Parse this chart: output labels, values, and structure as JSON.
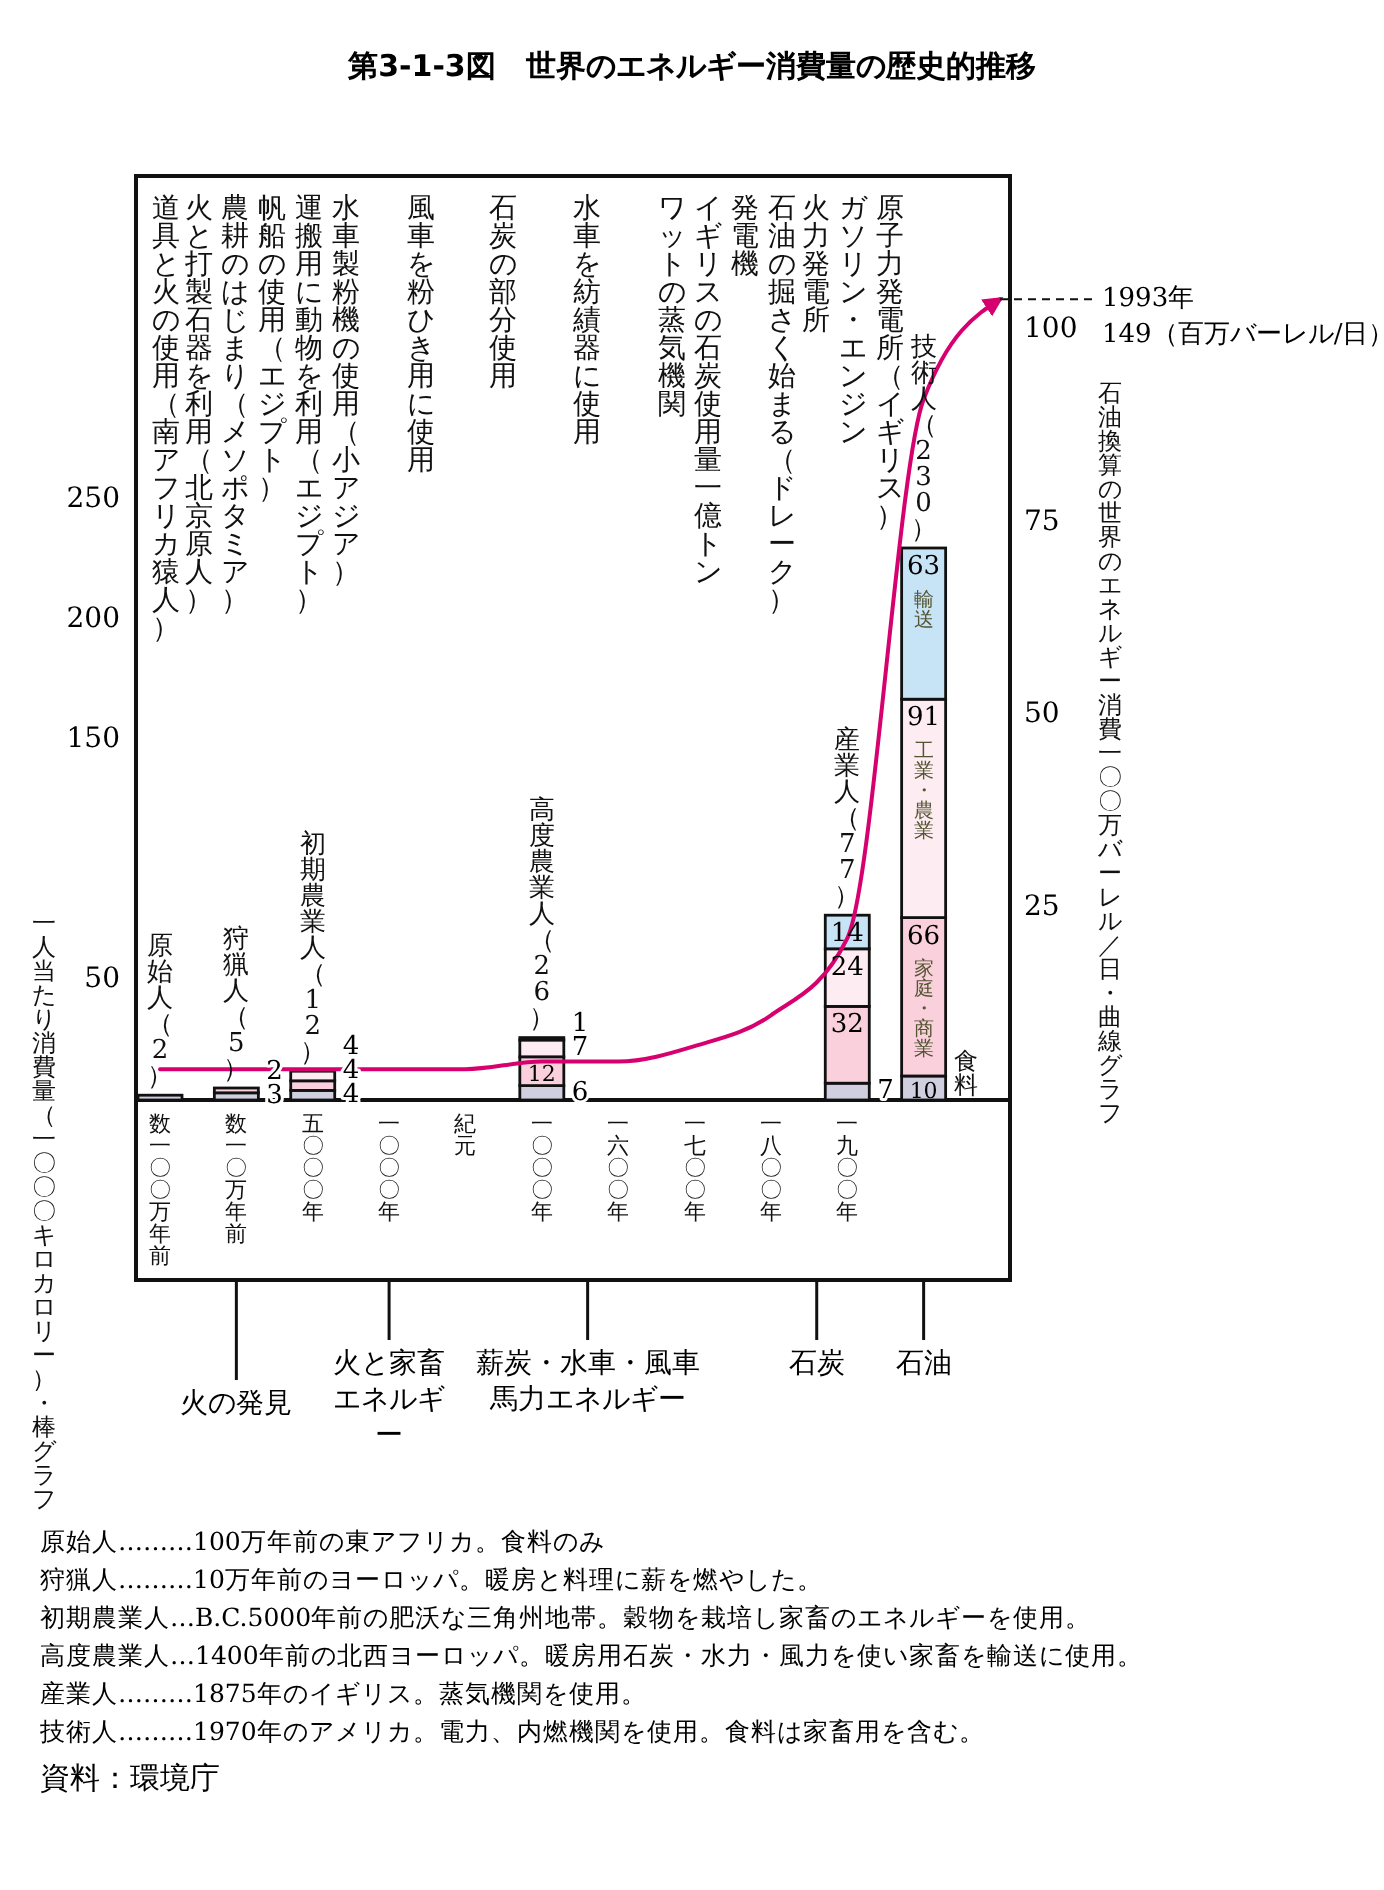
{
  "chart_data": {
    "type": "bar",
    "title": "第3-1-3図　世界のエネルギー消費量の歴史的推移",
    "ylabel": "一人当たり消費量（一〇〇〇キロカロリー）・棒グラフ",
    "y2label": "石油換算の世界のエネルギー消費一〇〇万バーレル／日・曲線グラフ",
    "categories": [
      "数一〇〇万年前",
      "数一〇万年前",
      "五〇〇〇年",
      "一〇〇〇年",
      "紀元",
      "一〇〇〇年",
      "一六〇〇年",
      "一七〇〇年",
      "一八〇〇年",
      "一九〇〇年",
      null,
      null
    ],
    "stacked": true,
    "data_labels": true,
    "series": [
      {
        "name": "食料",
        "color": "#cfcfe0",
        "values": [
          2,
          3,
          4,
          null,
          null,
          6,
          null,
          null,
          null,
          7,
          10,
          null
        ],
        "value_labels": [
          null,
          "3",
          "4",
          null,
          null,
          "6",
          null,
          null,
          null,
          "7",
          "10",
          null
        ]
      },
      {
        "name": "家庭・商業",
        "color": "#f9d0dc",
        "values": [
          null,
          2,
          4,
          null,
          null,
          12,
          null,
          null,
          null,
          32,
          66,
          null
        ]
      },
      {
        "name": "工業・農業",
        "color": "#fdecf1",
        "values": [
          null,
          null,
          4,
          null,
          null,
          7,
          null,
          null,
          null,
          24,
          91,
          null
        ]
      },
      {
        "name": "輸送",
        "color": "#c6e4f5",
        "values": [
          null,
          null,
          null,
          null,
          null,
          1,
          null,
          null,
          null,
          14,
          63,
          null
        ]
      },
      {
        "type": "line",
        "axis": "y2",
        "color": "#d6006e",
        "values": [
          4,
          4,
          4,
          4,
          4,
          5,
          5,
          7,
          11,
          21,
          91,
          104
        ],
        "value_labels": [
          null,
          null,
          null,
          null,
          null,
          null,
          null,
          null,
          null,
          null,
          null,
          null
        ]
      }
    ],
    "totals": [
      "原始人（2）",
      "狩猟人（5）",
      "初期農業人（12）",
      null,
      null,
      "高度農業人（26）",
      null,
      null,
      null,
      "産業人（77）",
      "技術人（230）",
      null
    ],
    "ylim": [
      0,
      385
    ],
    "yticks": [
      50,
      150,
      200,
      250
    ],
    "y2lim": [
      0,
      120
    ],
    "y2ticks": [
      25,
      50,
      75,
      100
    ],
    "annotations": [
      "道具と火の使用（南アフリカ猿人）",
      "火と打製石器を利用（北京原人）",
      "農耕のはじまり（メソポタミア）",
      "帆船の使用（エジプト）",
      "運搬用に動物を利用（エジプト）",
      "水車製粉機の使用（小アジア）",
      "風車を粉ひき用に使用",
      "石炭の部分使用",
      "水車を紡績器に使用",
      "ワットの蒸気機関",
      "イギリスの石炭使用量一億トン",
      "発電機",
      "石油の掘さく始まる（ドレーク）",
      "火力発電所",
      "ガソリン・エンジン",
      "原子力発電所（イギリス）",
      "火の発見",
      "火と家畜エネルギー",
      "薪炭・水車・風車馬力エネルギー",
      "石炭",
      "石油",
      "1993年 149（百万バーレル/日）",
      "原始人………100万年前の東アフリカ。食料のみ",
      "狩猟人………10万年前のヨーロッパ。暖房と料理に薪を燃やした。",
      "初期農業人…B.C.5000年前の肥沃な三角州地帯。穀物を栽培し家畜のエネルギーを使用。",
      "高度農業人…1400年前の北西ヨーロッパ。暖房用石炭・水力・風力を使い家畜を輸送に使用。",
      "産業人………1875年のイギリス。蒸気機関を使用。",
      "技術人………1970年のアメリカ。電力、内燃機関を使用。食料は家畜用を含む。",
      "資料：環境庁"
    ]
  }
}
